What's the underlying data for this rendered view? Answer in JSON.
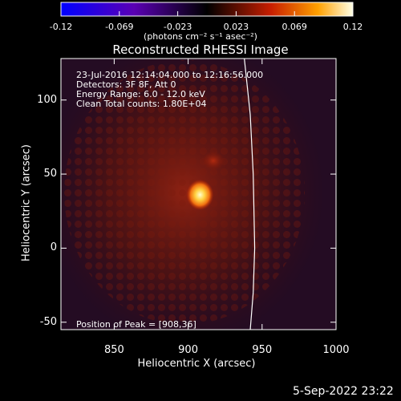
{
  "chart_data": {
    "type": "heatmap",
    "title": "Reconstructed RHESSI Image",
    "xlabel": "Heliocentric X (arcsec)",
    "ylabel": "Heliocentric Y (arcsec)",
    "xlim": [
      814,
      1000
    ],
    "ylim": [
      -55,
      128
    ],
    "x_ticks": [
      850,
      900,
      950,
      1000
    ],
    "y_ticks": [
      -50,
      0,
      50,
      100
    ],
    "colorbar": {
      "min": -0.12,
      "max": 0.12,
      "ticks": [
        "-0.12",
        "-0.069",
        "-0.023",
        "0.023",
        "0.069",
        "0.12"
      ],
      "units": "(photons cm⁻² s⁻¹ asec⁻²)"
    },
    "sources": [
      {
        "x": 908,
        "y": 36,
        "intensity": 0.12
      },
      {
        "x": 917,
        "y": 59,
        "intensity": 0.045
      }
    ],
    "limb": [
      [
        938,
        128
      ],
      [
        942,
        90
      ],
      [
        944,
        50
      ],
      [
        945,
        0
      ],
      [
        944,
        -30
      ],
      [
        942,
        -55
      ]
    ],
    "info_lines": [
      "23-Jul-2016 12:14:04.000 to 12:16:56.000",
      "Detectors: 3F 8F, Att 0",
      "Energy Range: 6.0 - 12.0 keV",
      "Clean    Total counts: 1.80E+04"
    ],
    "peak_label": "Position of Peak = [908,36]"
  },
  "footer_date": "5-Sep-2022 23:22"
}
